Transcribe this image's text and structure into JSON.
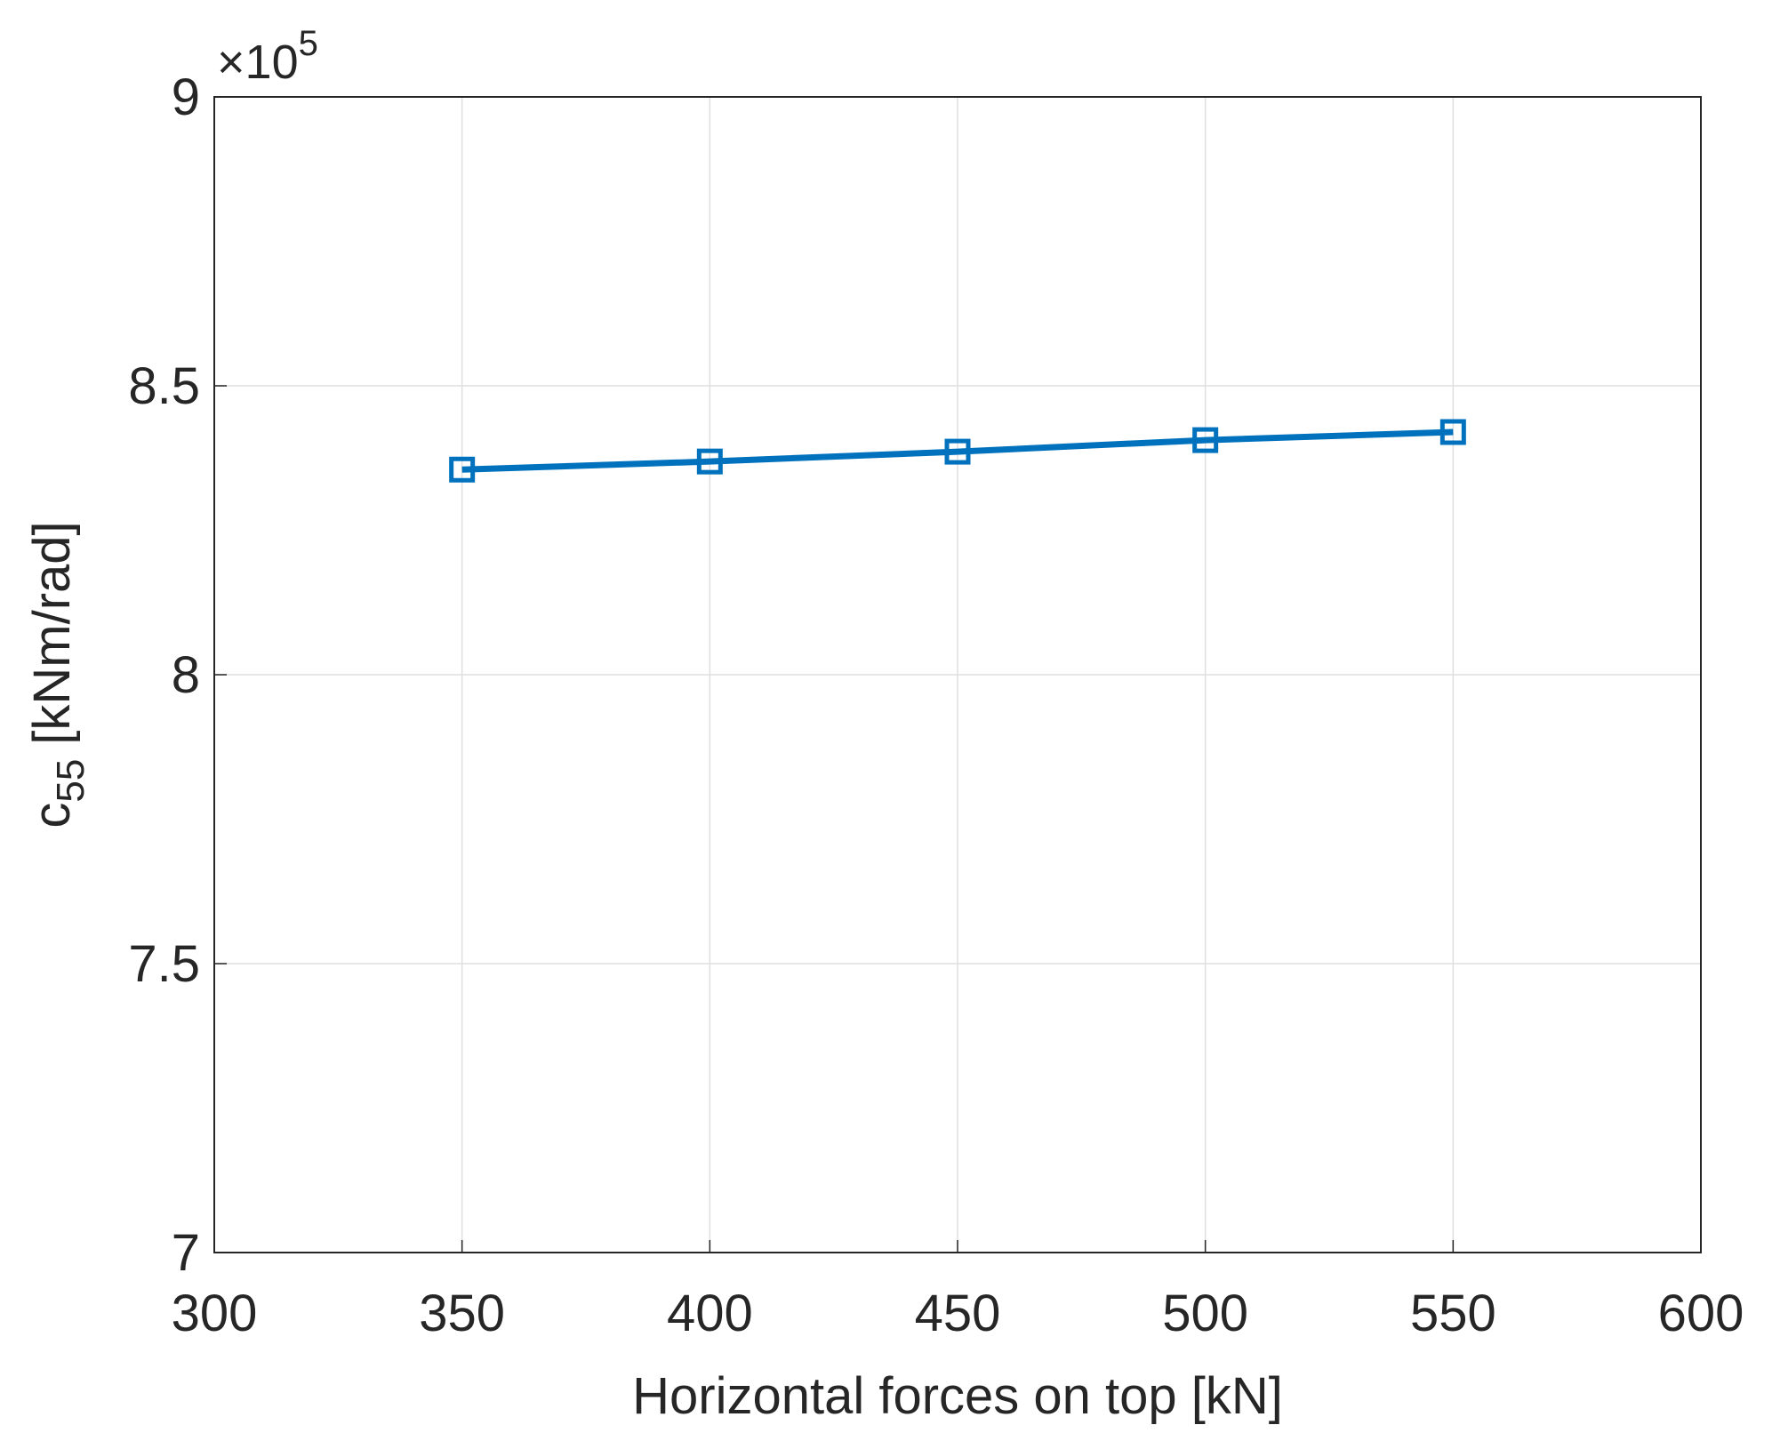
{
  "chart_data": {
    "type": "line",
    "xlabel": "Horizontal forces on top [kN]",
    "ylabel": {
      "main": "c",
      "subscript": "55",
      "suffix": "[kNm/rad]"
    },
    "y_multiplier": {
      "base": "×10",
      "exponent": "5"
    },
    "x": [
      350,
      400,
      450,
      500,
      550
    ],
    "series": [
      {
        "color": "#0072bd",
        "marker": "square",
        "values": [
          8.355,
          8.369,
          8.386,
          8.406,
          8.42
        ]
      }
    ],
    "xlim": [
      300,
      600
    ],
    "xticks": [
      300,
      350,
      400,
      450,
      500,
      550,
      600
    ],
    "ylim": [
      7,
      9
    ],
    "yticks": [
      7,
      7.5,
      8,
      8.5,
      9
    ],
    "grid": true
  }
}
